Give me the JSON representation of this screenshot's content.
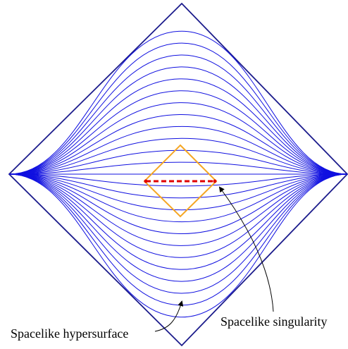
{
  "labels": {
    "singularity": "Spacelike singularity",
    "hypersurface": "Spacelike hypersurface"
  },
  "colors": {
    "diamond": "#1c1c8c",
    "foliation": "#1010e0",
    "inner_diamond": "#f5a623",
    "singularity": "#e00000",
    "arrow": "#000000"
  },
  "foliation": {
    "count_above_middle": 12,
    "count_below_middle": 12
  }
}
